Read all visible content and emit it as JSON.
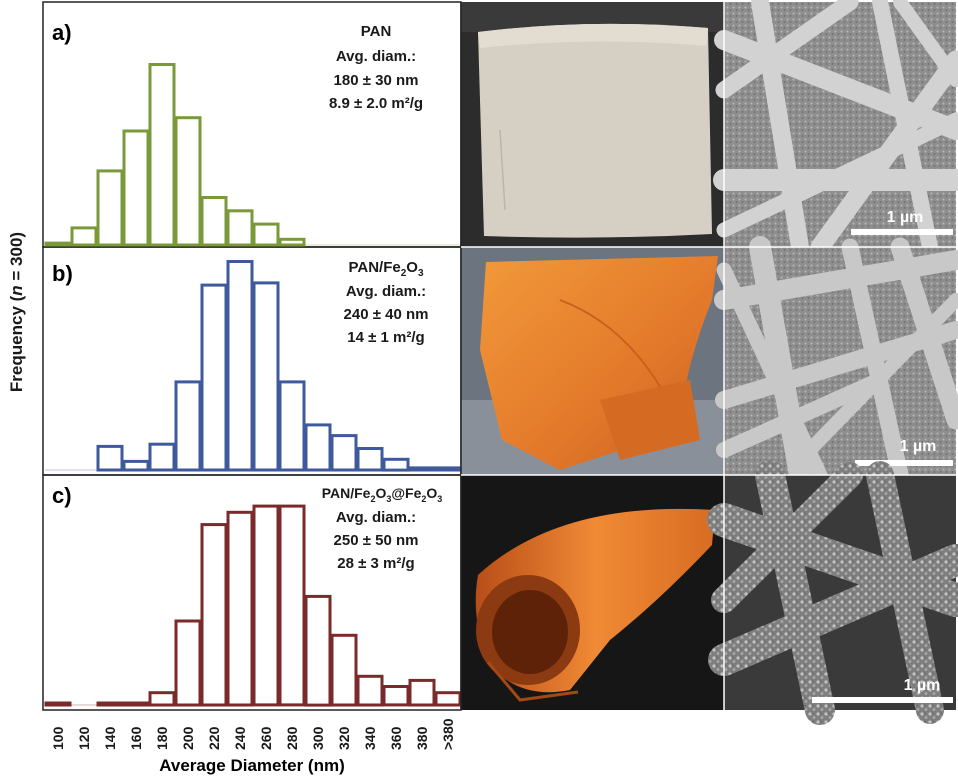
{
  "figure": {
    "ylabel_prefix": "Frequency (",
    "ylabel_n": "n",
    "ylabel_suffix": " = 300)",
    "xlabel": "Average Diameter (nm)",
    "x_ticks": [
      "100",
      "120",
      "140",
      "160",
      "180",
      "200",
      "220",
      "240",
      "260",
      "280",
      "300",
      "320",
      "340",
      "360",
      "380",
      ">380"
    ]
  },
  "chart_data": [
    {
      "type": "bar",
      "panel": "a)",
      "title": "PAN",
      "annotation_lines": [
        "Avg. diam.:",
        "180 ± 30 nm",
        "8.9 ± 2.0 m²/g"
      ],
      "color": "#7a9a3a",
      "categories": [
        "100",
        "120",
        "140",
        "160",
        "180",
        "200",
        "220",
        "240",
        "260",
        "280",
        "300",
        "320",
        "340",
        "360",
        "380",
        ">380"
      ],
      "values": [
        1,
        9,
        39,
        60,
        95,
        67,
        25,
        18,
        11,
        3,
        0,
        0,
        0,
        0,
        0,
        0
      ],
      "ylim": [
        0,
        100
      ]
    },
    {
      "type": "bar",
      "panel": "b)",
      "title_parts": [
        "PAN/Fe",
        "2",
        "O",
        "3"
      ],
      "annotation_lines": [
        "Avg. diam.:",
        "240 ± 40 nm",
        "14 ± 1 m²/g"
      ],
      "color": "#3f5a9c",
      "categories": [
        "100",
        "120",
        "140",
        "160",
        "180",
        "200",
        "220",
        "240",
        "260",
        "280",
        "300",
        "320",
        "340",
        "360",
        "380",
        ">380"
      ],
      "values": [
        0,
        0,
        11,
        4,
        12,
        41,
        86,
        97,
        87,
        41,
        21,
        16,
        10,
        5,
        1,
        1
      ],
      "ylim": [
        0,
        100
      ]
    },
    {
      "type": "bar",
      "panel": "c)",
      "title_parts": [
        "PAN/Fe",
        "2",
        "O",
        "3",
        "@Fe",
        "2",
        "O",
        "3"
      ],
      "annotation_lines": [
        "Avg. diam.:",
        "250 ± 50 nm",
        "28 ± 3 m²/g"
      ],
      "color": "#7a2a2a",
      "categories": [
        "100",
        "120",
        "140",
        "160",
        "180",
        "200",
        "220",
        "240",
        "260",
        "280",
        "300",
        "320",
        "340",
        "360",
        "380",
        ">380"
      ],
      "values": [
        1,
        0,
        1,
        1,
        6,
        41,
        88,
        94,
        97,
        97,
        53,
        34,
        14,
        9,
        12,
        6
      ],
      "ylim": [
        0,
        100
      ]
    }
  ],
  "photos": {
    "scale_bar_label": "1 µm"
  }
}
